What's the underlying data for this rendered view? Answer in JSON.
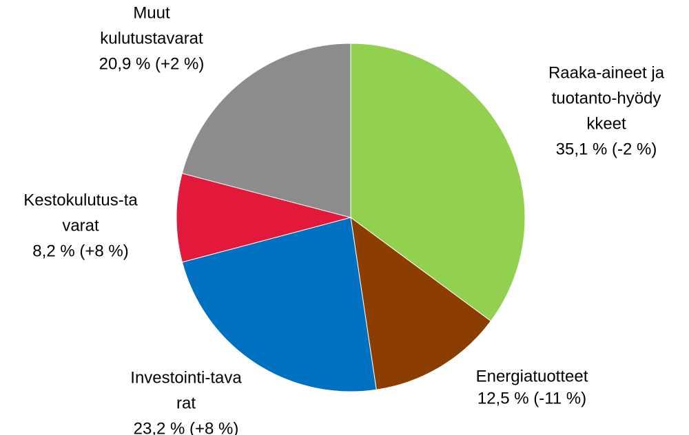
{
  "chart_data": {
    "type": "pie",
    "categories": [
      [
        "Raaka-aineet ja",
        "tuotanto-hyödy",
        "kkeet"
      ],
      [
        "Energiatuotteet"
      ],
      [
        "Investointi-tava",
        "rat"
      ],
      [
        "Kestokulutus-ta",
        "varat"
      ],
      [
        "Muut",
        "kulutustavarat"
      ]
    ],
    "values": [
      35.1,
      12.5,
      23.2,
      8.2,
      20.9
    ],
    "value_labels": [
      "35,1 % (-2 %)",
      "12,5 % (-11 %)",
      "23,2 % (+8 %)",
      "8,2 % (+8 %)",
      "20,9 % (+2 %)"
    ],
    "colors": [
      "#92d050",
      "#8b3e00",
      "#0070c0",
      "#e2193a",
      "#8c8c8c"
    ]
  }
}
